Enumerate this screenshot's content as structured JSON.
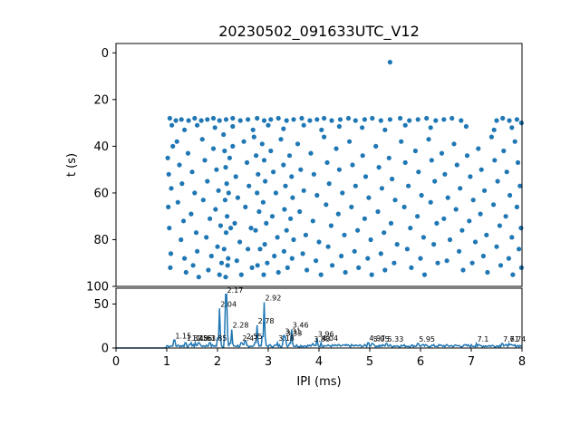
{
  "chart_data": [
    {
      "type": "scatter",
      "title": "20230502_091633UTC_V12",
      "xlabel": "",
      "ylabel": "t (s)",
      "xlim": [
        0,
        8
      ],
      "ylim": [
        100,
        -4
      ],
      "y_inverted": true,
      "y_ticks": [
        0,
        20,
        40,
        60,
        80,
        100
      ],
      "color": "#1f77b4",
      "grid": false,
      "points": [
        [
          5.4,
          4
        ],
        [
          1.06,
          28
        ],
        [
          1.18,
          29
        ],
        [
          1.29,
          28.5
        ],
        [
          1.43,
          29
        ],
        [
          1.55,
          28
        ],
        [
          1.68,
          29
        ],
        [
          1.8,
          28.5
        ],
        [
          1.92,
          28
        ],
        [
          2.04,
          29
        ],
        [
          2.17,
          28.5
        ],
        [
          2.3,
          28
        ],
        [
          2.45,
          29
        ],
        [
          2.6,
          28.5
        ],
        [
          2.78,
          28
        ],
        [
          2.92,
          29
        ],
        [
          3.05,
          28.5
        ],
        [
          3.2,
          28
        ],
        [
          3.36,
          29
        ],
        [
          3.5,
          28.5
        ],
        [
          3.66,
          28
        ],
        [
          3.82,
          29
        ],
        [
          3.96,
          28.5
        ],
        [
          4.1,
          28
        ],
        [
          4.25,
          29
        ],
        [
          4.42,
          28.5
        ],
        [
          4.58,
          28
        ],
        [
          4.72,
          29
        ],
        [
          4.9,
          28.5
        ],
        [
          5.05,
          28
        ],
        [
          5.22,
          29
        ],
        [
          5.4,
          28.5
        ],
        [
          5.6,
          28
        ],
        [
          5.78,
          29
        ],
        [
          5.95,
          28.5
        ],
        [
          6.12,
          28
        ],
        [
          6.3,
          29
        ],
        [
          6.46,
          28.5
        ],
        [
          6.62,
          28
        ],
        [
          6.8,
          29
        ],
        [
          7.5,
          29
        ],
        [
          7.62,
          28
        ],
        [
          7.75,
          29
        ],
        [
          7.9,
          28.5
        ],
        [
          7.99,
          30
        ],
        [
          1.1,
          31
        ],
        [
          1.35,
          33
        ],
        [
          1.6,
          31
        ],
        [
          1.95,
          32
        ],
        [
          2.3,
          31.5
        ],
        [
          2.7,
          33
        ],
        [
          3.0,
          31
        ],
        [
          3.3,
          32.5
        ],
        [
          3.7,
          31
        ],
        [
          4.05,
          33
        ],
        [
          4.4,
          31.5
        ],
        [
          4.85,
          32
        ],
        [
          5.3,
          33
        ],
        [
          5.7,
          31
        ],
        [
          6.2,
          32
        ],
        [
          6.9,
          31.5
        ],
        [
          7.45,
          33
        ],
        [
          7.8,
          32
        ],
        [
          1.02,
          45
        ],
        [
          1.04,
          52
        ],
        [
          1.03,
          66
        ],
        [
          1.05,
          75
        ],
        [
          1.07,
          92
        ],
        [
          1.09,
          58
        ],
        [
          1.12,
          40
        ],
        [
          1.08,
          86
        ],
        [
          1.2,
          38
        ],
        [
          1.25,
          48
        ],
        [
          1.3,
          56
        ],
        [
          1.22,
          64
        ],
        [
          1.33,
          72
        ],
        [
          1.28,
          80
        ],
        [
          1.35,
          88
        ],
        [
          1.38,
          94
        ],
        [
          1.42,
          43
        ],
        [
          1.5,
          51
        ],
        [
          1.55,
          60
        ],
        [
          1.48,
          69
        ],
        [
          1.58,
          77
        ],
        [
          1.6,
          85
        ],
        [
          1.52,
          91
        ],
        [
          1.63,
          96
        ],
        [
          1.7,
          37
        ],
        [
          1.75,
          46
        ],
        [
          1.8,
          55
        ],
        [
          1.72,
          63
        ],
        [
          1.85,
          71
        ],
        [
          1.78,
          79
        ],
        [
          1.88,
          87
        ],
        [
          1.82,
          93
        ],
        [
          1.92,
          41
        ],
        [
          1.98,
          50
        ],
        [
          2.02,
          59
        ],
        [
          1.96,
          67
        ],
        [
          2.06,
          74
        ],
        [
          2.0,
          83
        ],
        [
          2.08,
          90
        ],
        [
          2.04,
          95
        ],
        [
          2.12,
          35
        ],
        [
          2.14,
          42
        ],
        [
          2.16,
          49
        ],
        [
          2.18,
          56
        ],
        [
          2.15,
          63
        ],
        [
          2.19,
          70
        ],
        [
          2.17,
          77
        ],
        [
          2.13,
          84
        ],
        [
          2.2,
          91
        ],
        [
          2.16,
          96
        ],
        [
          2.24,
          45
        ],
        [
          2.22,
          60
        ],
        [
          2.26,
          75
        ],
        [
          2.21,
          88
        ],
        [
          2.3,
          40
        ],
        [
          2.36,
          53
        ],
        [
          2.4,
          62
        ],
        [
          2.34,
          73
        ],
        [
          2.44,
          81
        ],
        [
          2.38,
          89
        ],
        [
          2.47,
          95
        ],
        [
          2.52,
          38
        ],
        [
          2.58,
          47
        ],
        [
          2.62,
          57
        ],
        [
          2.55,
          66
        ],
        [
          2.66,
          75
        ],
        [
          2.6,
          84
        ],
        [
          2.68,
          92
        ],
        [
          2.72,
          36
        ],
        [
          2.76,
          44
        ],
        [
          2.8,
          52
        ],
        [
          2.78,
          60
        ],
        [
          2.82,
          68
        ],
        [
          2.75,
          76
        ],
        [
          2.84,
          84
        ],
        [
          2.79,
          91
        ],
        [
          2.88,
          39
        ],
        [
          2.92,
          46
        ],
        [
          2.94,
          55
        ],
        [
          2.9,
          64
        ],
        [
          2.96,
          73
        ],
        [
          2.93,
          82
        ],
        [
          2.98,
          90
        ],
        [
          2.91,
          95
        ],
        [
          3.05,
          42
        ],
        [
          3.1,
          51
        ],
        [
          3.15,
          60
        ],
        [
          3.08,
          70
        ],
        [
          3.18,
          79
        ],
        [
          3.12,
          87
        ],
        [
          3.2,
          94
        ],
        [
          3.25,
          37
        ],
        [
          3.3,
          48
        ],
        [
          3.34,
          57
        ],
        [
          3.32,
          67
        ],
        [
          3.36,
          76
        ],
        [
          3.31,
          85
        ],
        [
          3.38,
          92
        ],
        [
          3.42,
          44
        ],
        [
          3.46,
          53
        ],
        [
          3.48,
          62
        ],
        [
          3.44,
          71
        ],
        [
          3.5,
          80
        ],
        [
          3.47,
          88
        ],
        [
          3.58,
          39
        ],
        [
          3.64,
          50
        ],
        [
          3.7,
          59
        ],
        [
          3.62,
          68
        ],
        [
          3.74,
          78
        ],
        [
          3.68,
          86
        ],
        [
          3.76,
          93
        ],
        [
          3.84,
          43
        ],
        [
          3.9,
          52
        ],
        [
          3.96,
          61
        ],
        [
          3.88,
          72
        ],
        [
          4.0,
          81
        ],
        [
          3.94,
          89
        ],
        [
          4.04,
          95
        ],
        [
          4.1,
          36
        ],
        [
          4.16,
          47
        ],
        [
          4.2,
          56
        ],
        [
          4.14,
          65
        ],
        [
          4.24,
          74
        ],
        [
          4.18,
          83
        ],
        [
          4.26,
          91
        ],
        [
          4.34,
          41
        ],
        [
          4.4,
          50
        ],
        [
          4.46,
          60
        ],
        [
          4.38,
          69
        ],
        [
          4.5,
          78
        ],
        [
          4.44,
          87
        ],
        [
          4.52,
          94
        ],
        [
          4.6,
          38
        ],
        [
          4.66,
          48
        ],
        [
          4.72,
          57
        ],
        [
          4.64,
          66
        ],
        [
          4.76,
          76
        ],
        [
          4.7,
          85
        ],
        [
          4.78,
          92
        ],
        [
          4.86,
          44
        ],
        [
          4.92,
          53
        ],
        [
          4.98,
          62
        ],
        [
          4.9,
          71
        ],
        [
          5.02,
          80
        ],
        [
          4.96,
          88
        ],
        [
          5.04,
          95
        ],
        [
          5.12,
          40
        ],
        [
          5.18,
          49
        ],
        [
          5.24,
          58
        ],
        [
          5.16,
          68
        ],
        [
          5.28,
          77
        ],
        [
          5.22,
          86
        ],
        [
          5.3,
          93
        ],
        [
          5.38,
          45
        ],
        [
          5.44,
          54
        ],
        [
          5.5,
          63
        ],
        [
          5.42,
          73
        ],
        [
          5.54,
          82
        ],
        [
          5.48,
          90
        ],
        [
          5.62,
          38
        ],
        [
          5.7,
          47
        ],
        [
          5.76,
          57
        ],
        [
          5.68,
          66
        ],
        [
          5.8,
          75
        ],
        [
          5.74,
          84
        ],
        [
          5.82,
          92
        ],
        [
          5.9,
          42
        ],
        [
          5.96,
          51
        ],
        [
          6.02,
          61
        ],
        [
          5.94,
          70
        ],
        [
          6.06,
          79
        ],
        [
          6.0,
          88
        ],
        [
          6.08,
          95
        ],
        [
          6.16,
          37
        ],
        [
          6.22,
          46
        ],
        [
          6.28,
          55
        ],
        [
          6.2,
          64
        ],
        [
          6.32,
          73
        ],
        [
          6.26,
          82
        ],
        [
          6.34,
          90
        ],
        [
          6.42,
          43
        ],
        [
          6.48,
          52
        ],
        [
          6.54,
          62
        ],
        [
          6.46,
          71
        ],
        [
          6.58,
          80
        ],
        [
          6.52,
          89
        ],
        [
          6.66,
          39
        ],
        [
          6.72,
          48
        ],
        [
          6.78,
          58
        ],
        [
          6.7,
          67
        ],
        [
          6.82,
          76
        ],
        [
          6.76,
          85
        ],
        [
          6.84,
          93
        ],
        [
          6.92,
          44
        ],
        [
          6.98,
          53
        ],
        [
          7.04,
          63
        ],
        [
          6.96,
          72
        ],
        [
          7.08,
          81
        ],
        [
          7.02,
          90
        ],
        [
          7.14,
          41
        ],
        [
          7.2,
          50
        ],
        [
          7.26,
          59
        ],
        [
          7.18,
          69
        ],
        [
          7.3,
          78
        ],
        [
          7.24,
          87
        ],
        [
          7.32,
          94
        ],
        [
          7.4,
          36
        ],
        [
          7.46,
          46
        ],
        [
          7.52,
          55
        ],
        [
          7.44,
          65
        ],
        [
          7.56,
          74
        ],
        [
          7.5,
          83
        ],
        [
          7.58,
          91
        ],
        [
          7.64,
          42
        ],
        [
          7.7,
          51
        ],
        [
          7.76,
          61
        ],
        [
          7.68,
          70
        ],
        [
          7.8,
          79
        ],
        [
          7.74,
          88
        ],
        [
          7.82,
          95
        ],
        [
          7.86,
          38
        ],
        [
          7.92,
          47
        ],
        [
          7.96,
          57
        ],
        [
          7.9,
          66
        ],
        [
          7.98,
          75
        ],
        [
          7.94,
          84
        ],
        [
          7.99,
          92
        ]
      ]
    },
    {
      "type": "line",
      "xlabel": "IPI (ms)",
      "ylabel": "",
      "xlim": [
        0,
        8
      ],
      "ylim": [
        0,
        68
      ],
      "x_ticks": [
        0,
        1,
        2,
        3,
        4,
        5,
        6,
        7,
        8
      ],
      "y_ticks": [
        0,
        50
      ],
      "color": "#1f77b4",
      "grid": false,
      "peaks": [
        {
          "x": 1.15,
          "y": 9,
          "label": "1.15"
        },
        {
          "x": 1.37,
          "y": 6,
          "label": "1.37"
        },
        {
          "x": 1.48,
          "y": 6,
          "label": "1.48"
        },
        {
          "x": 1.56,
          "y": 6,
          "label": "1.56"
        },
        {
          "x": 1.63,
          "y": 6,
          "label": "1.63"
        },
        {
          "x": 1.85,
          "y": 6,
          "label": "1.85"
        },
        {
          "x": 2.04,
          "y": 45,
          "label": "2.04"
        },
        {
          "x": 2.17,
          "y": 61,
          "label": "2.17"
        },
        {
          "x": 2.28,
          "y": 21,
          "label": "2.28"
        },
        {
          "x": 2.47,
          "y": 6,
          "label": "2.47"
        },
        {
          "x": 2.55,
          "y": 8,
          "label": "2.55"
        },
        {
          "x": 2.78,
          "y": 26,
          "label": "2.78"
        },
        {
          "x": 2.92,
          "y": 52,
          "label": "2.92"
        },
        {
          "x": 3.18,
          "y": 6,
          "label": "3.18"
        },
        {
          "x": 3.31,
          "y": 14,
          "label": "3.31"
        },
        {
          "x": 3.33,
          "y": 12,
          "label": "3.33"
        },
        {
          "x": 3.46,
          "y": 21,
          "label": "3.46"
        },
        {
          "x": 3.88,
          "y": 5,
          "label": "3.88"
        },
        {
          "x": 3.96,
          "y": 11,
          "label": "3.96"
        },
        {
          "x": 4.04,
          "y": 6,
          "label": "4.04"
        },
        {
          "x": 4.97,
          "y": 6,
          "label": "4.97"
        },
        {
          "x": 5.05,
          "y": 5,
          "label": "5.05"
        },
        {
          "x": 5.33,
          "y": 5,
          "label": "5.33"
        },
        {
          "x": 5.95,
          "y": 5,
          "label": "5.95"
        },
        {
          "x": 7.1,
          "y": 5,
          "label": "7.1"
        },
        {
          "x": 7.61,
          "y": 5,
          "label": "7.61"
        },
        {
          "x": 7.74,
          "y": 5,
          "label": "7.74"
        }
      ]
    }
  ]
}
